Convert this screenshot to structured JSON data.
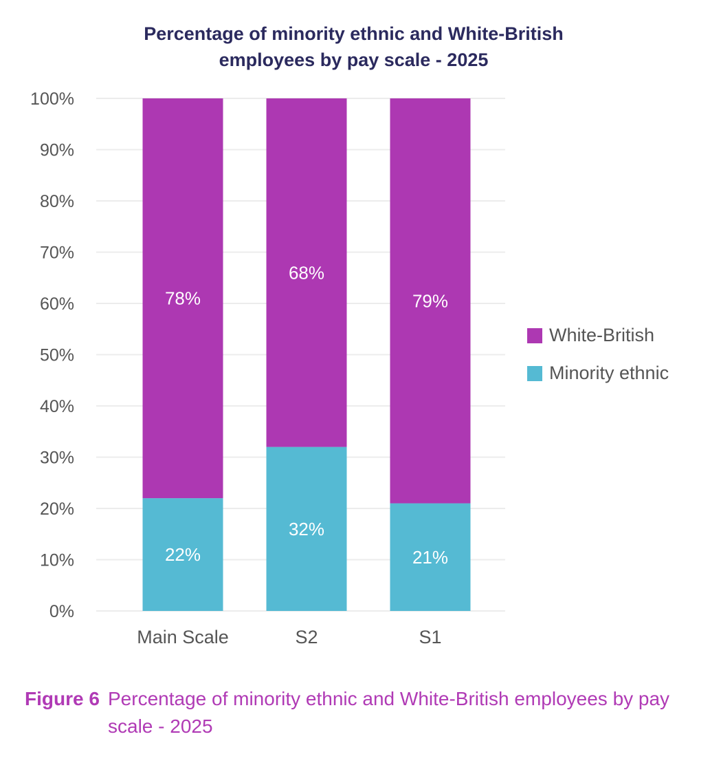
{
  "chart_data": {
    "type": "bar",
    "stacked": true,
    "title": "Percentage of minority ethnic and White-British employees by pay scale - 2025",
    "title_lines": [
      "Percentage of minority ethnic and White-British",
      "employees by pay scale - 2025"
    ],
    "categories": [
      "Main Scale",
      "S2",
      "S1"
    ],
    "series": [
      {
        "name": "Minority ethnic",
        "values": [
          22,
          32,
          21
        ],
        "color": "#55bad3",
        "labels": [
          "22%",
          "32%",
          "21%"
        ]
      },
      {
        "name": "White-British",
        "values": [
          78,
          68,
          79
        ],
        "color": "#ad38b2",
        "labels": [
          "78%",
          "68%",
          "79%"
        ]
      }
    ],
    "ylim": [
      0,
      100
    ],
    "yticks": [
      "0%",
      "10%",
      "20%",
      "30%",
      "40%",
      "50%",
      "60%",
      "70%",
      "80%",
      "90%",
      "100%"
    ],
    "xlabel": "",
    "ylabel": "",
    "grid": true,
    "legend": {
      "placement": "right",
      "entries": [
        "White-British",
        "Minority ethnic"
      ]
    }
  },
  "caption": {
    "label": "Figure 6",
    "text": "Percentage of minority ethnic and White-British employees by pay scale - 2025"
  }
}
